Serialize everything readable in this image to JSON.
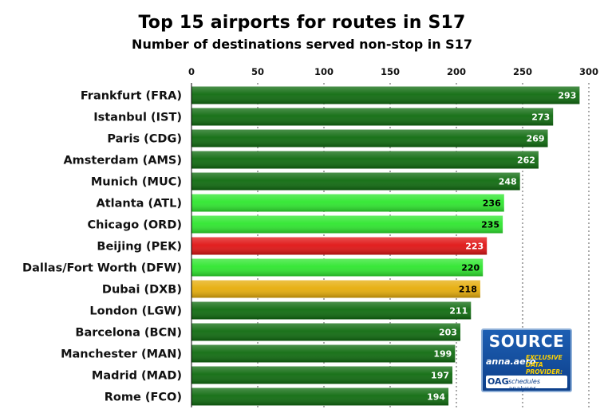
{
  "chart_data": {
    "type": "bar",
    "orientation": "horizontal",
    "title": "Top 15 airports for routes in S17",
    "subtitle": "Number of destinations served non-stop in S17",
    "categories": [
      "Frankfurt (FRA)",
      "Istanbul (IST)",
      "Paris (CDG)",
      "Amsterdam (AMS)",
      "Munich (MUC)",
      "Atlanta (ATL)",
      "Chicago (ORD)",
      "Beijing (PEK)",
      "Dallas/Fort Worth (DFW)",
      "Dubai (DXB)",
      "London (LGW)",
      "Barcelona (BCN)",
      "Manchester (MAN)",
      "Madrid (MAD)",
      "Rome (FCO)"
    ],
    "values": [
      293,
      273,
      269,
      262,
      248,
      236,
      235,
      223,
      220,
      218,
      211,
      203,
      199,
      197,
      194
    ],
    "bar_colors": [
      "#0f6b0f",
      "#0f6b0f",
      "#0f6b0f",
      "#0f6b0f",
      "#0f6b0f",
      "#2ee62e",
      "#2ee62e",
      "#e01414",
      "#2ee62e",
      "#e6ad0a",
      "#0f6b0f",
      "#0f6b0f",
      "#0f6b0f",
      "#0f6b0f",
      "#0f6b0f"
    ],
    "label_colors": [
      "#ffffff",
      "#ffffff",
      "#ffffff",
      "#ffffff",
      "#ffffff",
      "#000000",
      "#000000",
      "#ffffff",
      "#000000",
      "#000000",
      "#ffffff",
      "#ffffff",
      "#ffffff",
      "#ffffff",
      "#ffffff"
    ],
    "xlim": [
      0,
      300
    ],
    "xticks": [
      0,
      50,
      100,
      150,
      200,
      250,
      300
    ],
    "x_axis_position": "top",
    "grid": "vertical dotted lines",
    "xlabel": "",
    "ylabel": ""
  },
  "logo": {
    "source": "SOURCE",
    "anna": "anna.aero",
    "exclusive": "EXCLUSIVE DATA PROVIDER:",
    "oag": "OAG",
    "oag_text": "schedules analyser"
  }
}
